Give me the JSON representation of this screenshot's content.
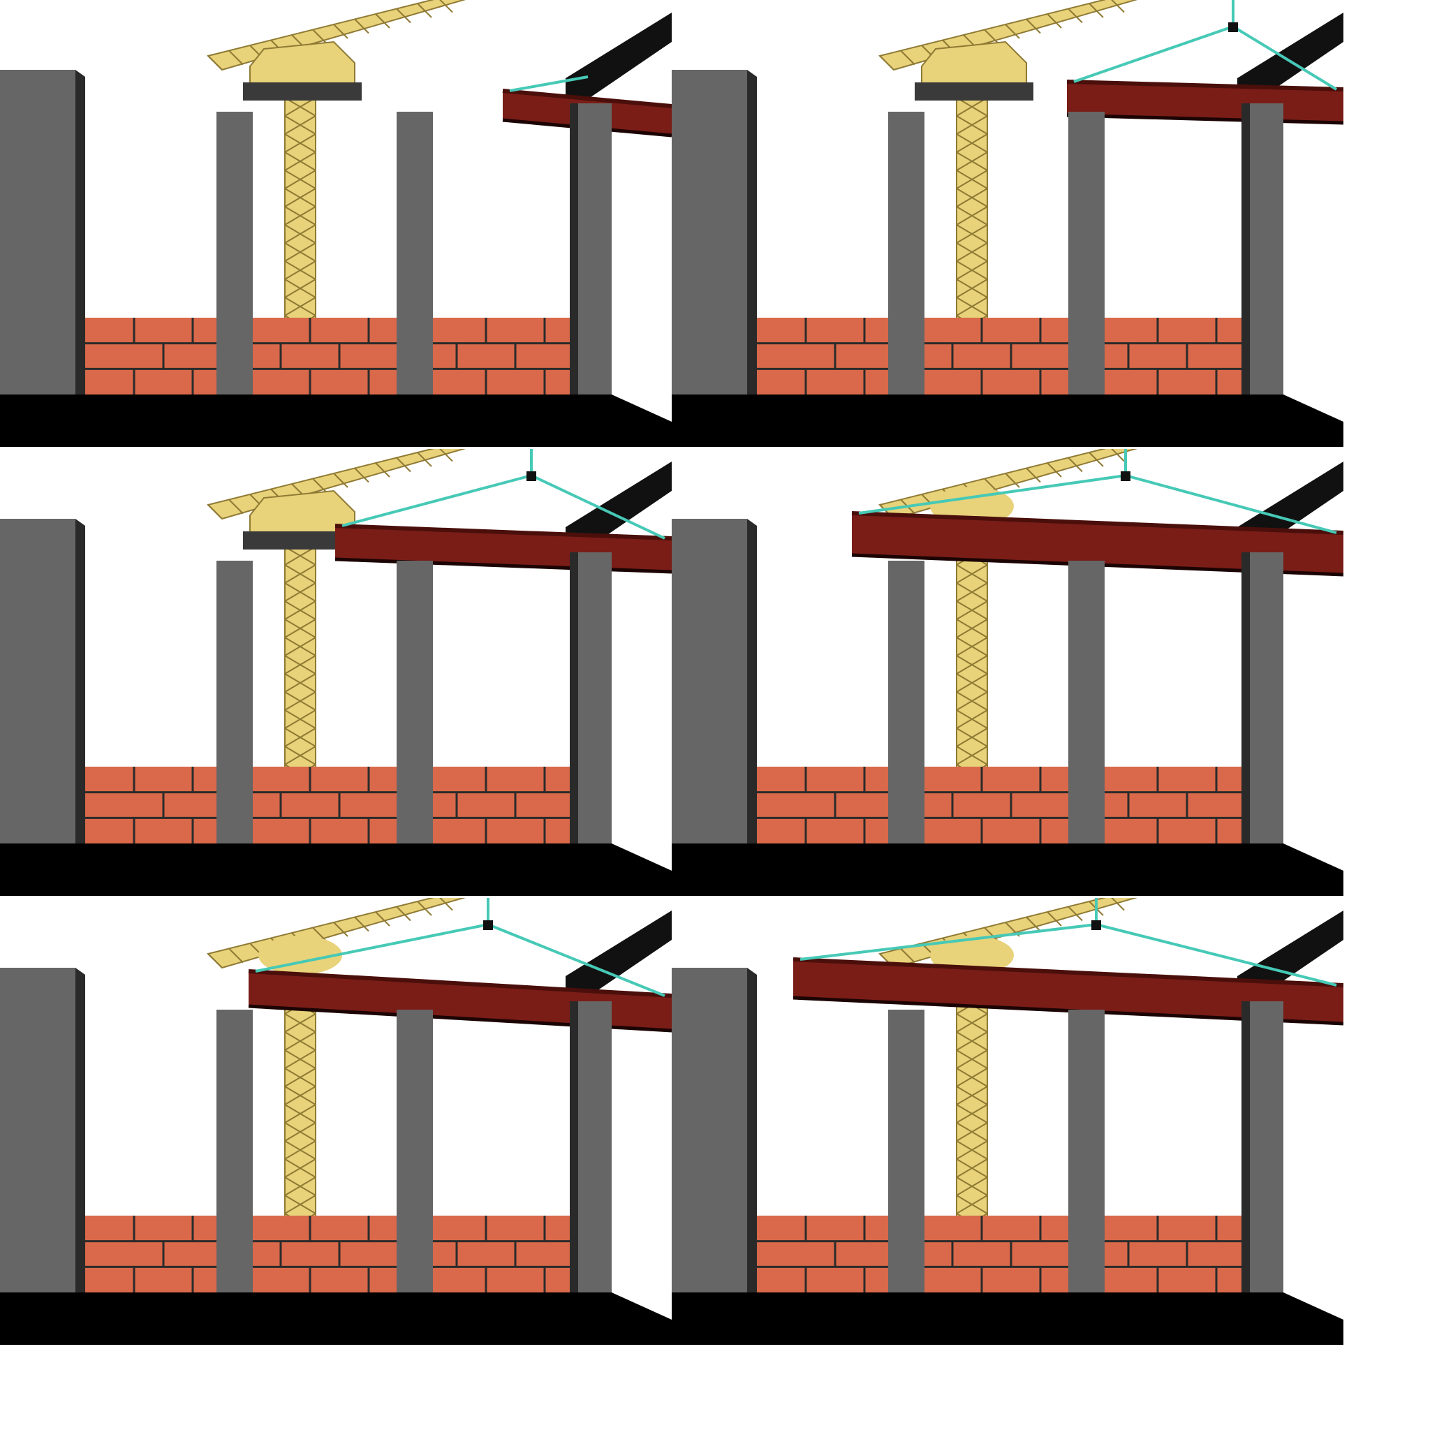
{
  "scene": {
    "description_kind": "rendered construction sequence, 2 columns x 3 rows",
    "colors": {
      "background": "#ffffff",
      "ground": "#000000",
      "pillar": "#666666",
      "pillar_dark": "#2a2a2a",
      "brick": "#d9694a",
      "mortar": "#2b2b2b",
      "crane": "#e8d27a",
      "crane_dark": "#8f7a34",
      "beam": "#7a1d17",
      "beam_dark": "#4a0f0b",
      "cable": "#46c9b6",
      "black_beam": "#111111"
    },
    "icons": {
      "crane": "tower-crane",
      "beam": "steel-i-beam",
      "cable": "lifting-sling"
    }
  },
  "panels": [
    {
      "id": "panel-1",
      "beam_state": "far-right",
      "sling": "left-hook",
      "crane_cab": true
    },
    {
      "id": "panel-2",
      "beam_state": "right-pair",
      "sling": "top-hook",
      "crane_cab": true
    },
    {
      "id": "panel-3",
      "beam_state": "middle",
      "sling": "top-hook",
      "crane_cab": true
    },
    {
      "id": "panel-4",
      "beam_state": "full-span",
      "sling": "top-hook",
      "crane_cab": false
    },
    {
      "id": "panel-5",
      "beam_state": "left-middle",
      "sling": "top-hook",
      "crane_cab": false
    },
    {
      "id": "panel-6",
      "beam_state": "full-span-low",
      "sling": "top-hook",
      "crane_cab": false
    }
  ]
}
